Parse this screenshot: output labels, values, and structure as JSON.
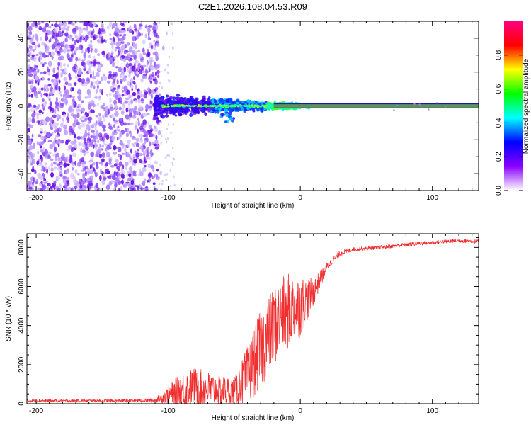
{
  "title": "C2E1.2026.108.04.53.R09",
  "colors": {
    "signal": "#f03030",
    "carrier": "#f03a3a",
    "scatter": "#7a1ff0",
    "axis": "#000000"
  },
  "chart_data": [
    {
      "type": "heatmap",
      "xlabel": "Height of straight line (km)",
      "ylabel": "Frequency (Hz)",
      "xlim": [
        -207,
        135
      ],
      "ylim": [
        -50,
        50
      ],
      "xticks": [
        -200,
        -100,
        0,
        100
      ],
      "yticks": [
        -40,
        -20,
        0,
        20,
        40
      ],
      "noise_region_x": [
        -207,
        -107
      ],
      "transition_region_x": [
        -110,
        10
      ],
      "carrier_line": {
        "x_start": -20,
        "x_end": 135,
        "frequency": 0
      },
      "colorbar": {
        "label": "Normalized spectral amplitude",
        "ticks": [
          0.0,
          0.2,
          0.4,
          0.6,
          0.8
        ],
        "range": [
          0,
          1
        ],
        "colors": [
          "#ffffff",
          "#8a00ff",
          "#0000ff",
          "#00ffff",
          "#00ff00",
          "#ffff00",
          "#ff0000",
          "#ff0080"
        ]
      }
    },
    {
      "type": "line",
      "xlabel": "Height of straight line (km)",
      "ylabel": "SNR (10 * v/v)",
      "xlim": [
        -207,
        135
      ],
      "ylim": [
        0,
        8700
      ],
      "xticks": [
        -200,
        -100,
        0,
        100
      ],
      "yticks": [
        0,
        2000,
        4000,
        6000,
        8000
      ],
      "series": [
        {
          "name": "SNR",
          "x": [
            -207,
            -150,
            -110,
            -100,
            -90,
            -80,
            -70,
            -60,
            -50,
            -40,
            -30,
            -20,
            -10,
            0,
            10,
            20,
            30,
            40,
            60,
            80,
            100,
            120,
            135
          ],
          "y": [
            150,
            150,
            170,
            450,
            700,
            850,
            750,
            650,
            600,
            1400,
            2800,
            4000,
            4700,
            5000,
            5700,
            7000,
            7700,
            7900,
            8000,
            8150,
            8250,
            8350,
            8300
          ],
          "amplitude": [
            80,
            80,
            100,
            450,
            900,
            1000,
            900,
            800,
            800,
            1500,
            2000,
            2000,
            2000,
            1600,
            700,
            200,
            150,
            100,
            100,
            100,
            100,
            100,
            100
          ]
        }
      ]
    }
  ]
}
